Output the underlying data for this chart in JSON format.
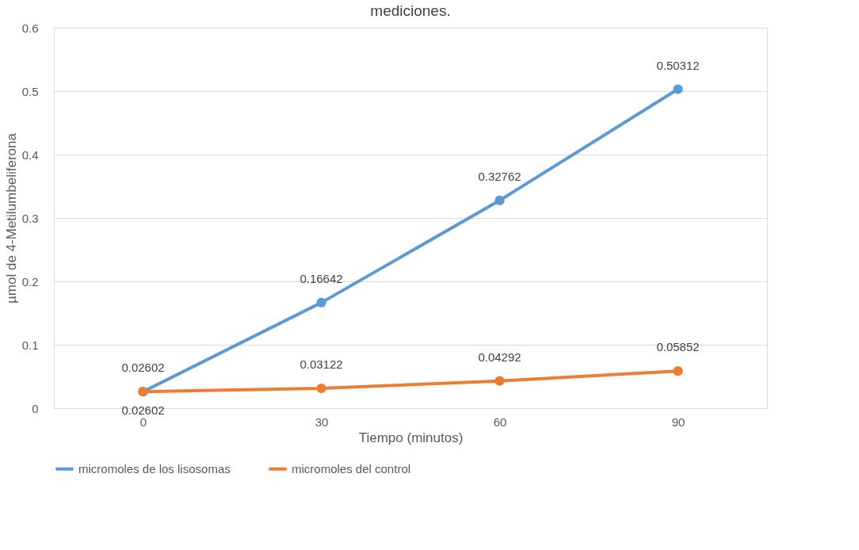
{
  "chart_data": {
    "type": "line",
    "title": "mediciones.",
    "xlabel": "Tiempo (minutos)",
    "ylabel": "µmol de 4-Metilumbeliferona",
    "categories": [
      "0",
      "30",
      "60",
      "90"
    ],
    "series": [
      {
        "name": "micromoles de los lisosomas",
        "color": "#5b9bd5",
        "values": [
          0.02602,
          0.16642,
          0.32762,
          0.50312
        ]
      },
      {
        "name": "micromoles del control",
        "color": "#ed7d31",
        "values": [
          0.02602,
          0.03122,
          0.04292,
          0.05852
        ]
      }
    ],
    "ylim": [
      0,
      0.6
    ],
    "yticks": [
      0,
      0.1,
      0.2,
      0.3,
      0.4,
      0.5,
      0.6
    ],
    "grid": "y",
    "legend": "bottom",
    "marker": "circle",
    "line_style": "solid",
    "data_labels": true
  }
}
